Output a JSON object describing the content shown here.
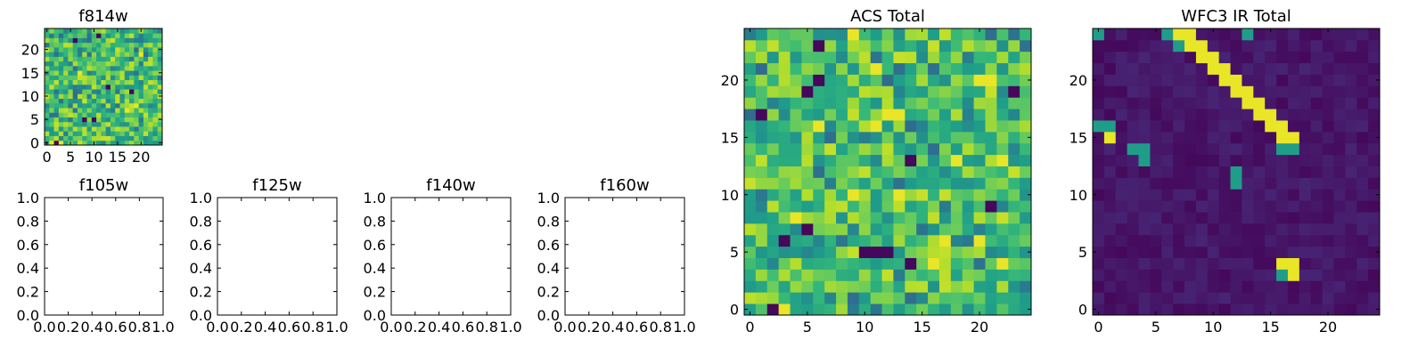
{
  "chart_data": [
    {
      "type": "heatmap",
      "title": "f814w",
      "xlim": [
        -0.5,
        24.5
      ],
      "ylim": [
        -0.5,
        24.5
      ],
      "xticks": [
        0,
        5,
        10,
        15,
        20
      ],
      "yticks": [
        0,
        5,
        10,
        15,
        20
      ],
      "colormap": "viridis",
      "grid": false,
      "grid_size": 25,
      "pattern": "noise-high",
      "hot_cells": [
        [
          1,
          0
        ],
        [
          3,
          0
        ],
        [
          17,
          7
        ],
        [
          19,
          8
        ],
        [
          7,
          15
        ],
        [
          20,
          19
        ]
      ],
      "cold_cells": [
        [
          2,
          0
        ],
        [
          8,
          5
        ],
        [
          10,
          5
        ],
        [
          13,
          12
        ],
        [
          18,
          11
        ],
        [
          6,
          22
        ],
        [
          11,
          23
        ]
      ]
    },
    {
      "type": "heatmap",
      "title": "f105w",
      "xlim": [
        0,
        1
      ],
      "ylim": [
        0,
        1
      ],
      "xticks": [
        "0.0",
        "0.2",
        "0.4",
        "0.6",
        "0.8",
        "1.0"
      ],
      "yticks": [
        "0.0",
        "0.2",
        "0.4",
        "0.6",
        "0.8",
        "1.0"
      ],
      "empty": true
    },
    {
      "type": "heatmap",
      "title": "f125w",
      "xlim": [
        0,
        1
      ],
      "ylim": [
        0,
        1
      ],
      "xticks": [
        "0.0",
        "0.2",
        "0.4",
        "0.6",
        "0.8",
        "1.0"
      ],
      "yticks": [
        "0.0",
        "0.2",
        "0.4",
        "0.6",
        "0.8",
        "1.0"
      ],
      "empty": true
    },
    {
      "type": "heatmap",
      "title": "f140w",
      "xlim": [
        0,
        1
      ],
      "ylim": [
        0,
        1
      ],
      "xticks": [
        "0.0",
        "0.2",
        "0.4",
        "0.6",
        "0.8",
        "1.0"
      ],
      "yticks": [
        "0.0",
        "0.2",
        "0.4",
        "0.6",
        "0.8",
        "1.0"
      ],
      "empty": true
    },
    {
      "type": "heatmap",
      "title": "f160w",
      "xlim": [
        0,
        1
      ],
      "ylim": [
        0,
        1
      ],
      "xticks": [
        "0.0",
        "0.2",
        "0.4",
        "0.6",
        "0.8",
        "1.0"
      ],
      "yticks": [
        "0.0",
        "0.2",
        "0.4",
        "0.6",
        "0.8",
        "1.0"
      ],
      "empty": true
    },
    {
      "type": "heatmap",
      "title": "ACS Total",
      "xlim": [
        -0.5,
        24.5
      ],
      "ylim": [
        -0.5,
        24.5
      ],
      "xticks": [
        0,
        5,
        10,
        15,
        20
      ],
      "yticks": [
        0,
        5,
        10,
        15,
        20
      ],
      "colormap": "viridis",
      "grid": false,
      "grid_size": 25,
      "pattern": "noise-high",
      "hot_cells": [
        [
          9,
          24
        ],
        [
          12,
          17
        ],
        [
          13,
          17
        ],
        [
          11,
          16
        ],
        [
          18,
          13
        ],
        [
          20,
          20
        ],
        [
          21,
          20
        ],
        [
          22,
          13
        ],
        [
          4,
          8
        ],
        [
          9,
          10
        ],
        [
          13,
          10
        ],
        [
          17,
          6
        ],
        [
          20,
          6
        ],
        [
          16,
          4
        ],
        [
          22,
          4
        ],
        [
          3,
          0
        ],
        [
          11,
          21
        ],
        [
          6,
          16
        ]
      ],
      "cold_cells": [
        [
          6,
          23
        ],
        [
          6,
          20
        ],
        [
          23,
          19
        ],
        [
          1,
          17
        ],
        [
          21,
          9
        ],
        [
          3,
          6
        ],
        [
          10,
          5
        ],
        [
          2,
          0
        ],
        [
          14,
          13
        ],
        [
          5,
          7
        ],
        [
          11,
          5
        ],
        [
          12,
          5
        ],
        [
          14,
          4
        ],
        [
          5,
          19
        ]
      ]
    },
    {
      "type": "heatmap",
      "title": "WFC3 IR Total",
      "xlim": [
        -0.5,
        24.5
      ],
      "ylim": [
        -0.5,
        24.5
      ],
      "xticks": [
        0,
        5,
        10,
        15,
        20
      ],
      "yticks": [
        0,
        5,
        10,
        15,
        20
      ],
      "colormap": "viridis",
      "grid": false,
      "grid_size": 25,
      "pattern": "background-low",
      "hot_cells": [
        [
          7,
          24
        ],
        [
          8,
          24
        ],
        [
          8,
          23
        ],
        [
          9,
          23
        ],
        [
          9,
          22
        ],
        [
          10,
          22
        ],
        [
          10,
          21
        ],
        [
          11,
          21
        ],
        [
          11,
          20
        ],
        [
          12,
          20
        ],
        [
          12,
          19
        ],
        [
          13,
          19
        ],
        [
          13,
          18
        ],
        [
          14,
          18
        ],
        [
          14,
          17
        ],
        [
          15,
          17
        ],
        [
          15,
          16
        ],
        [
          16,
          16
        ],
        [
          16,
          15
        ],
        [
          17,
          15
        ],
        [
          1,
          15
        ],
        [
          16,
          4
        ],
        [
          17,
          4
        ],
        [
          17,
          3
        ]
      ],
      "warm_cells": [
        [
          0,
          24
        ],
        [
          0,
          16
        ],
        [
          1,
          16
        ],
        [
          3,
          14
        ],
        [
          4,
          14
        ],
        [
          4,
          13
        ],
        [
          12,
          12
        ],
        [
          12,
          11
        ],
        [
          17,
          14
        ],
        [
          16,
          14
        ],
        [
          16,
          3
        ],
        [
          13,
          24
        ],
        [
          6,
          24
        ],
        [
          7,
          23
        ]
      ]
    }
  ]
}
